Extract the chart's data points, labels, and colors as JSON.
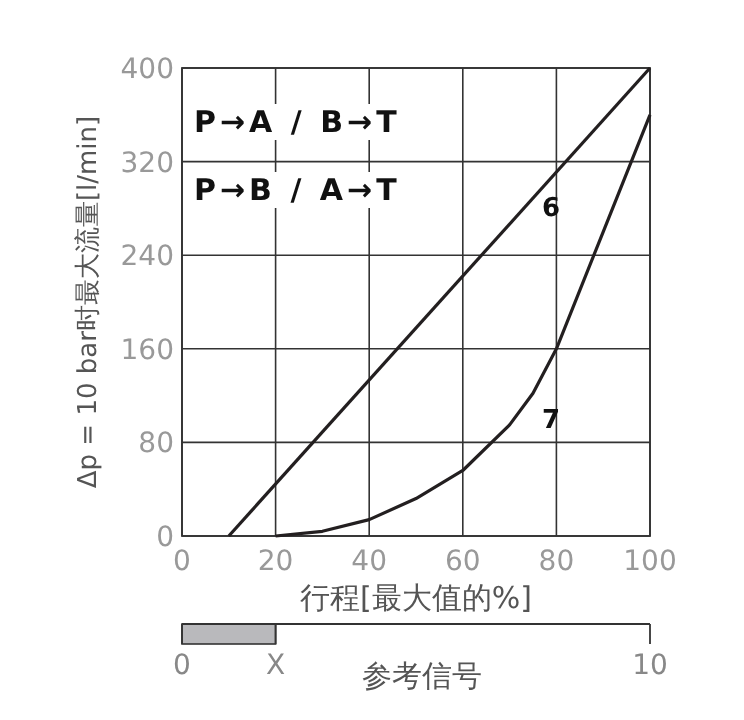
{
  "chart_data": [
    {
      "type": "line",
      "xlabel": "行程[最大值的%]",
      "ylabel": "Δp = 10 bar时最大流量[l/min]",
      "xlim": [
        0,
        100
      ],
      "ylim": [
        0,
        400
      ],
      "xticks": [
        0,
        20,
        40,
        60,
        80,
        100
      ],
      "yticks": [
        0,
        80,
        160,
        240,
        320,
        400
      ],
      "grid": true,
      "marker": "none",
      "line_style": "solid",
      "series": [
        {
          "color": "#231f20",
          "x": [
            10,
            100
          ],
          "values": [
            0,
            400
          ]
        },
        {
          "color": "#231f20",
          "x": [
            20,
            30,
            40,
            50,
            60,
            70,
            75,
            80,
            90,
            100
          ],
          "values": [
            0,
            4,
            14,
            32,
            56,
            95,
            122,
            160,
            260,
            360
          ]
        }
      ],
      "annotations": [
        "P→A / B→T",
        "P→B / A→T",
        "6",
        "7"
      ]
    },
    {
      "type": "bar",
      "orientation": "horizontal",
      "categories": [
        null
      ],
      "values": [
        2
      ],
      "color": "#b9b9bc",
      "xlim": [
        0,
        10
      ],
      "xticks": [
        0,
        {
          "value": 2,
          "label": "X"
        },
        10
      ],
      "xlabel": "参考信号",
      "tick_labels": "x",
      "grid": false
    }
  ]
}
